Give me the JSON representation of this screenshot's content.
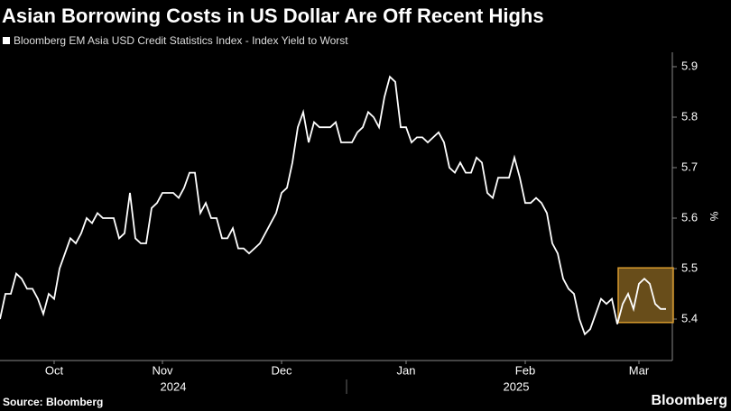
{
  "chart_data": {
    "type": "line",
    "title": "Asian Borrowing Costs in US Dollar Are Off Recent Highs",
    "series": [
      {
        "name": "Bloomberg EM Asia USD Credit Statistics Index - Index Yield to Worst",
        "color": "#ffffff",
        "values": [
          5.4,
          5.45,
          5.45,
          5.49,
          5.48,
          5.46,
          5.46,
          5.44,
          5.41,
          5.45,
          5.44,
          5.5,
          5.53,
          5.56,
          5.55,
          5.57,
          5.6,
          5.59,
          5.61,
          5.6,
          5.6,
          5.6,
          5.56,
          5.57,
          5.65,
          5.56,
          5.55,
          5.55,
          5.62,
          5.63,
          5.65,
          5.65,
          5.65,
          5.64,
          5.66,
          5.69,
          5.69,
          5.61,
          5.63,
          5.6,
          5.6,
          5.56,
          5.56,
          5.58,
          5.54,
          5.54,
          5.53,
          5.54,
          5.55,
          5.57,
          5.59,
          5.61,
          5.65,
          5.66,
          5.71,
          5.78,
          5.81,
          5.75,
          5.79,
          5.78,
          5.78,
          5.78,
          5.79,
          5.75,
          5.75,
          5.75,
          5.77,
          5.78,
          5.81,
          5.8,
          5.78,
          5.84,
          5.88,
          5.87,
          5.78,
          5.78,
          5.75,
          5.76,
          5.76,
          5.75,
          5.76,
          5.77,
          5.75,
          5.7,
          5.69,
          5.71,
          5.69,
          5.69,
          5.72,
          5.71,
          5.65,
          5.64,
          5.68,
          5.68,
          5.68,
          5.72,
          5.68,
          5.63,
          5.63,
          5.64,
          5.63,
          5.61,
          5.55,
          5.53,
          5.48,
          5.46,
          5.45,
          5.4,
          5.37,
          5.38,
          5.41,
          5.44,
          5.43,
          5.44,
          5.39,
          5.43,
          5.45,
          5.42,
          5.47,
          5.48,
          5.47,
          5.43,
          5.42,
          5.42
        ]
      }
    ],
    "categories": [
      null,
      null,
      null,
      null,
      null,
      null,
      null,
      null,
      null,
      null,
      "Oct",
      null,
      null,
      null,
      null,
      null,
      null,
      null,
      null,
      null,
      null,
      null,
      null,
      null,
      null,
      null,
      null,
      null,
      null,
      null,
      "Nov",
      null,
      null,
      null,
      null,
      null,
      null,
      null,
      null,
      null,
      null,
      null,
      null,
      null,
      null,
      null,
      null,
      null,
      null,
      null,
      null,
      null,
      "Dec",
      null,
      null,
      null,
      null,
      null,
      null,
      null,
      null,
      null,
      null,
      null,
      null,
      null,
      null,
      null,
      null,
      null,
      null,
      null,
      null,
      null,
      null,
      "Jan",
      null,
      null,
      null,
      null,
      null,
      null,
      null,
      null,
      null,
      null,
      null,
      null,
      null,
      null,
      null,
      null,
      null,
      null,
      null,
      null,
      null,
      "Feb",
      null,
      null,
      null,
      null,
      null,
      null,
      null,
      null,
      null,
      null,
      null,
      null,
      null,
      null,
      null,
      null,
      null,
      null,
      null,
      null,
      "Mar",
      null,
      null,
      null,
      null,
      null
    ],
    "x_groups": [
      {
        "label": "2024",
        "start": 0
      },
      {
        "label": "2025",
        "start": 64
      }
    ],
    "y_label": "%",
    "ylim": [
      5.32,
      5.92
    ],
    "yticks": [
      5.4,
      5.5,
      5.6,
      5.7,
      5.8,
      5.9
    ],
    "source": "Source: Bloomberg",
    "brand": "Bloomberg"
  }
}
